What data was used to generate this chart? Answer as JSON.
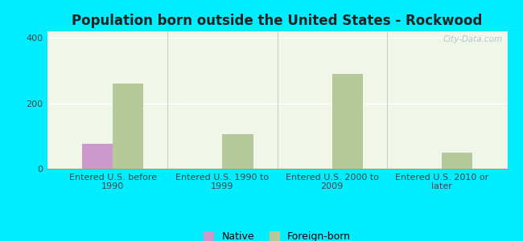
{
  "title": "Population born outside the United States - Rockwood",
  "categories": [
    "Entered U.S. before\n1990",
    "Entered U.S. 1990 to\n1999",
    "Entered U.S. 2000 to\n2009",
    "Entered U.S. 2010 or\nlater"
  ],
  "native_values": [
    75,
    0,
    0,
    0
  ],
  "foreign_values": [
    260,
    105,
    290,
    50
  ],
  "native_color": "#cc99cc",
  "foreign_color": "#b5c99a",
  "background_color": "#00eeff",
  "plot_bg_top": "#f0f7e8",
  "plot_bg_bottom": "#d8f0d0",
  "ylim": [
    0,
    420
  ],
  "yticks": [
    0,
    200,
    400
  ],
  "bar_width": 0.28,
  "grid_color": "#ffffff",
  "divider_color": "#cccccc",
  "watermark": "City-Data.com",
  "title_fontsize": 12,
  "tick_fontsize": 8,
  "legend_fontsize": 9
}
